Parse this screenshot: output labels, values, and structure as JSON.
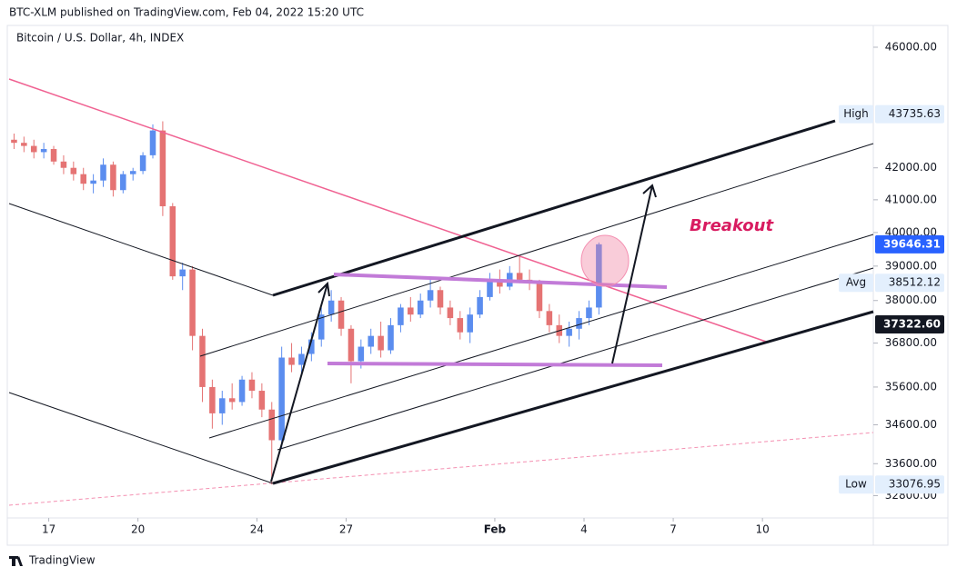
{
  "header": "BTC-XLM published on TradingView.com, Feb 04, 2022 15:20 UTC",
  "footer": "TradingView",
  "chart_data": {
    "type": "candlestick",
    "title": "Bitcoin / U.S. Dollar, 4h, INDEX",
    "annotation": "Breakout",
    "up_color": "#5b8def",
    "down_color": "#e57373",
    "log_scale": true,
    "ylim": [
      32253,
      46698
    ],
    "yticks": [
      {
        "value": 46000,
        "label": "46000.00"
      },
      {
        "value": 42000,
        "label": "42000.00"
      },
      {
        "value": 41000,
        "label": "41000.00"
      },
      {
        "value": 40000,
        "label": "40000.00"
      },
      {
        "value": 39000,
        "label": "39000.00"
      },
      {
        "value": 38000,
        "label": "38000.00"
      },
      {
        "value": 36800,
        "label": "36800.00"
      },
      {
        "value": 35600,
        "label": "35600.00"
      },
      {
        "value": 34600,
        "label": "34600.00"
      },
      {
        "value": 33600,
        "label": "33600.00"
      },
      {
        "value": 32800,
        "label": "32800.00"
      }
    ],
    "xlim": [
      0,
      87
    ],
    "xticks": [
      {
        "value": 4,
        "label": "17"
      },
      {
        "value": 13,
        "label": "20"
      },
      {
        "value": 25,
        "label": "24"
      },
      {
        "value": 34,
        "label": "27"
      },
      {
        "value": 49,
        "label": "Feb"
      },
      {
        "value": 58,
        "label": "4"
      },
      {
        "value": 67,
        "label": "7"
      },
      {
        "value": 76,
        "label": "10"
      }
    ],
    "price_labels": [
      {
        "name": "High",
        "value": 43735.63,
        "label": "43735.63",
        "color": "#e3effd"
      },
      {
        "value": 39646.31,
        "label": "39646.31",
        "color": "#2962ff"
      },
      {
        "name": "Avg",
        "value": 38512.12,
        "label": "38512.12",
        "color": "#e3effd"
      },
      {
        "value": 37322.6,
        "label": "37322.60",
        "color": "#131722"
      },
      {
        "name": "Low",
        "value": 33076.95,
        "label": "33076.95",
        "color": "#e3effd"
      }
    ],
    "open": [
      42900,
      42800,
      42700,
      42500,
      42600,
      42200,
      42000,
      41800,
      41500,
      41600,
      42100,
      41300,
      41800,
      41900,
      42400,
      43200,
      40800,
      38700,
      38900,
      37000,
      35600,
      34900,
      35300,
      35200,
      35800,
      35500,
      35000,
      34200,
      36400,
      36200,
      36500,
      36900,
      37600,
      38000,
      37200,
      36300,
      36700,
      37000,
      36600,
      37300,
      37800,
      37600,
      38000,
      38300,
      37800,
      37500,
      37100,
      37600,
      38100,
      38600,
      38400,
      38800,
      38600,
      38500,
      37700,
      37300,
      37000,
      37200,
      37500,
      37800
    ],
    "high": [
      43100,
      43000,
      42900,
      42800,
      42700,
      42400,
      42200,
      42000,
      41800,
      42300,
      42200,
      41900,
      42000,
      42500,
      43400,
      43500,
      40900,
      39100,
      39000,
      37200,
      35800,
      35500,
      35700,
      35900,
      36000,
      35700,
      35200,
      36700,
      36800,
      36700,
      37100,
      37800,
      38300,
      38100,
      37300,
      36900,
      37200,
      37400,
      37500,
      37900,
      38100,
      38200,
      38600,
      38400,
      38000,
      37700,
      37800,
      38300,
      38800,
      38900,
      39000,
      39300,
      38900,
      38600,
      37900,
      37600,
      37400,
      37700,
      38000,
      39700
    ],
    "low": [
      42600,
      42500,
      42300,
      42300,
      42100,
      41800,
      41600,
      41300,
      41200,
      41400,
      41100,
      41200,
      41600,
      41800,
      42300,
      40500,
      38600,
      38300,
      36600,
      35200,
      34500,
      34600,
      35000,
      35100,
      35300,
      34800,
      33077,
      34000,
      36000,
      35900,
      36300,
      36700,
      37400,
      37000,
      35700,
      36100,
      36500,
      36400,
      36500,
      37100,
      37400,
      37500,
      37800,
      37600,
      37300,
      36900,
      36800,
      37500,
      38000,
      38200,
      38300,
      38500,
      38300,
      37500,
      37100,
      36800,
      36700,
      36900,
      37300,
      37600
    ],
    "close": [
      42800,
      42700,
      42500,
      42600,
      42200,
      42000,
      41800,
      41500,
      41600,
      42100,
      41300,
      41800,
      41900,
      42400,
      43200,
      40800,
      38700,
      38900,
      37000,
      35600,
      34900,
      35300,
      35200,
      35800,
      35500,
      35000,
      34200,
      36400,
      36200,
      36500,
      36900,
      37600,
      38000,
      37200,
      36300,
      36700,
      37000,
      36600,
      37300,
      37800,
      37600,
      38000,
      38300,
      37800,
      37500,
      37100,
      37600,
      38100,
      38600,
      38400,
      38800,
      38600,
      38500,
      37700,
      37300,
      37000,
      37200,
      37500,
      37800,
      39646.31
    ]
  }
}
